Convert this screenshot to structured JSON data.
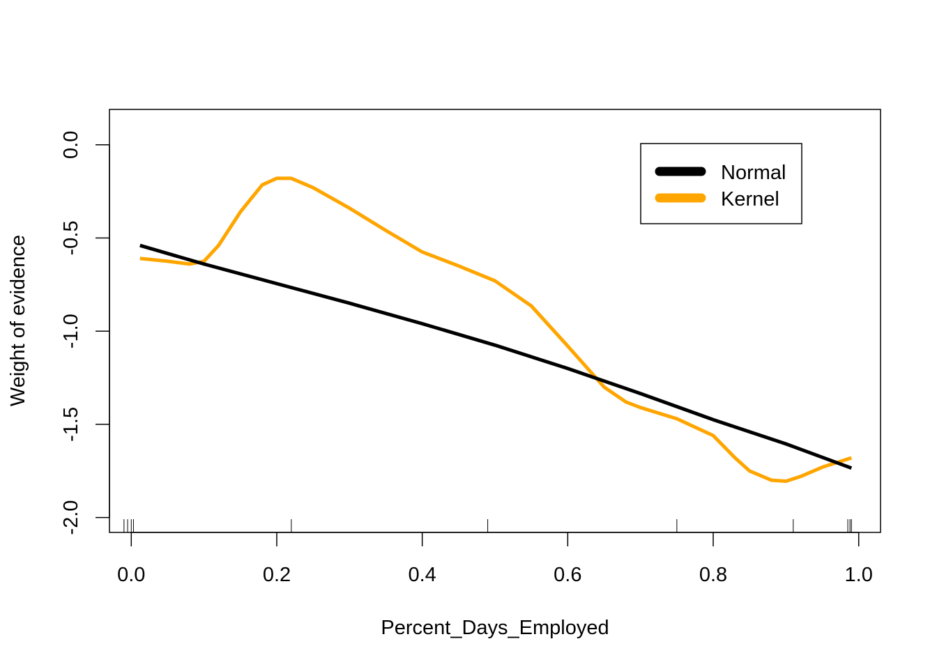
{
  "chart_data": {
    "type": "line",
    "title": "",
    "xlabel": "Percent_Days_Employed",
    "ylabel": "Weight of evidence",
    "xlim": [
      -0.03,
      1.03
    ],
    "ylim": [
      -2.08,
      0.19
    ],
    "xticks": [
      0.0,
      0.2,
      0.4,
      0.6,
      0.8,
      1.0
    ],
    "xtick_labels": [
      "0.0",
      "0.2",
      "0.4",
      "0.6",
      "0.8",
      "1.0"
    ],
    "yticks": [
      0.0,
      -0.5,
      -1.0,
      -1.5,
      -2.0
    ],
    "ytick_labels": [
      "0.0",
      "-0.5",
      "-1.0",
      "-1.5",
      "-2.0"
    ],
    "grid": false,
    "legend": {
      "position": "top-right"
    },
    "series": [
      {
        "name": "Normal",
        "color": "#000000",
        "x": [
          0.012,
          0.1,
          0.2,
          0.3,
          0.4,
          0.5,
          0.6,
          0.7,
          0.8,
          0.9,
          0.99
        ],
        "y": [
          -0.54,
          -0.64,
          -0.745,
          -0.85,
          -0.96,
          -1.075,
          -1.2,
          -1.335,
          -1.475,
          -1.605,
          -1.735
        ]
      },
      {
        "name": "Kernel",
        "color": "#FFA500",
        "x": [
          0.012,
          0.05,
          0.08,
          0.1,
          0.12,
          0.15,
          0.18,
          0.2,
          0.22,
          0.25,
          0.3,
          0.35,
          0.4,
          0.45,
          0.5,
          0.55,
          0.6,
          0.65,
          0.68,
          0.7,
          0.75,
          0.8,
          0.83,
          0.85,
          0.88,
          0.9,
          0.92,
          0.95,
          0.99
        ],
        "y": [
          -0.61,
          -0.625,
          -0.64,
          -0.625,
          -0.54,
          -0.36,
          -0.215,
          -0.18,
          -0.18,
          -0.23,
          -0.34,
          -0.46,
          -0.575,
          -0.65,
          -0.73,
          -0.865,
          -1.08,
          -1.3,
          -1.38,
          -1.41,
          -1.47,
          -1.56,
          -1.68,
          -1.75,
          -1.8,
          -1.805,
          -1.78,
          -1.73,
          -1.68
        ]
      }
    ],
    "rug": [
      -0.01,
      -0.005,
      0.0,
      0.003,
      0.22,
      0.49,
      0.75,
      0.91,
      0.985,
      0.988,
      0.99
    ]
  }
}
